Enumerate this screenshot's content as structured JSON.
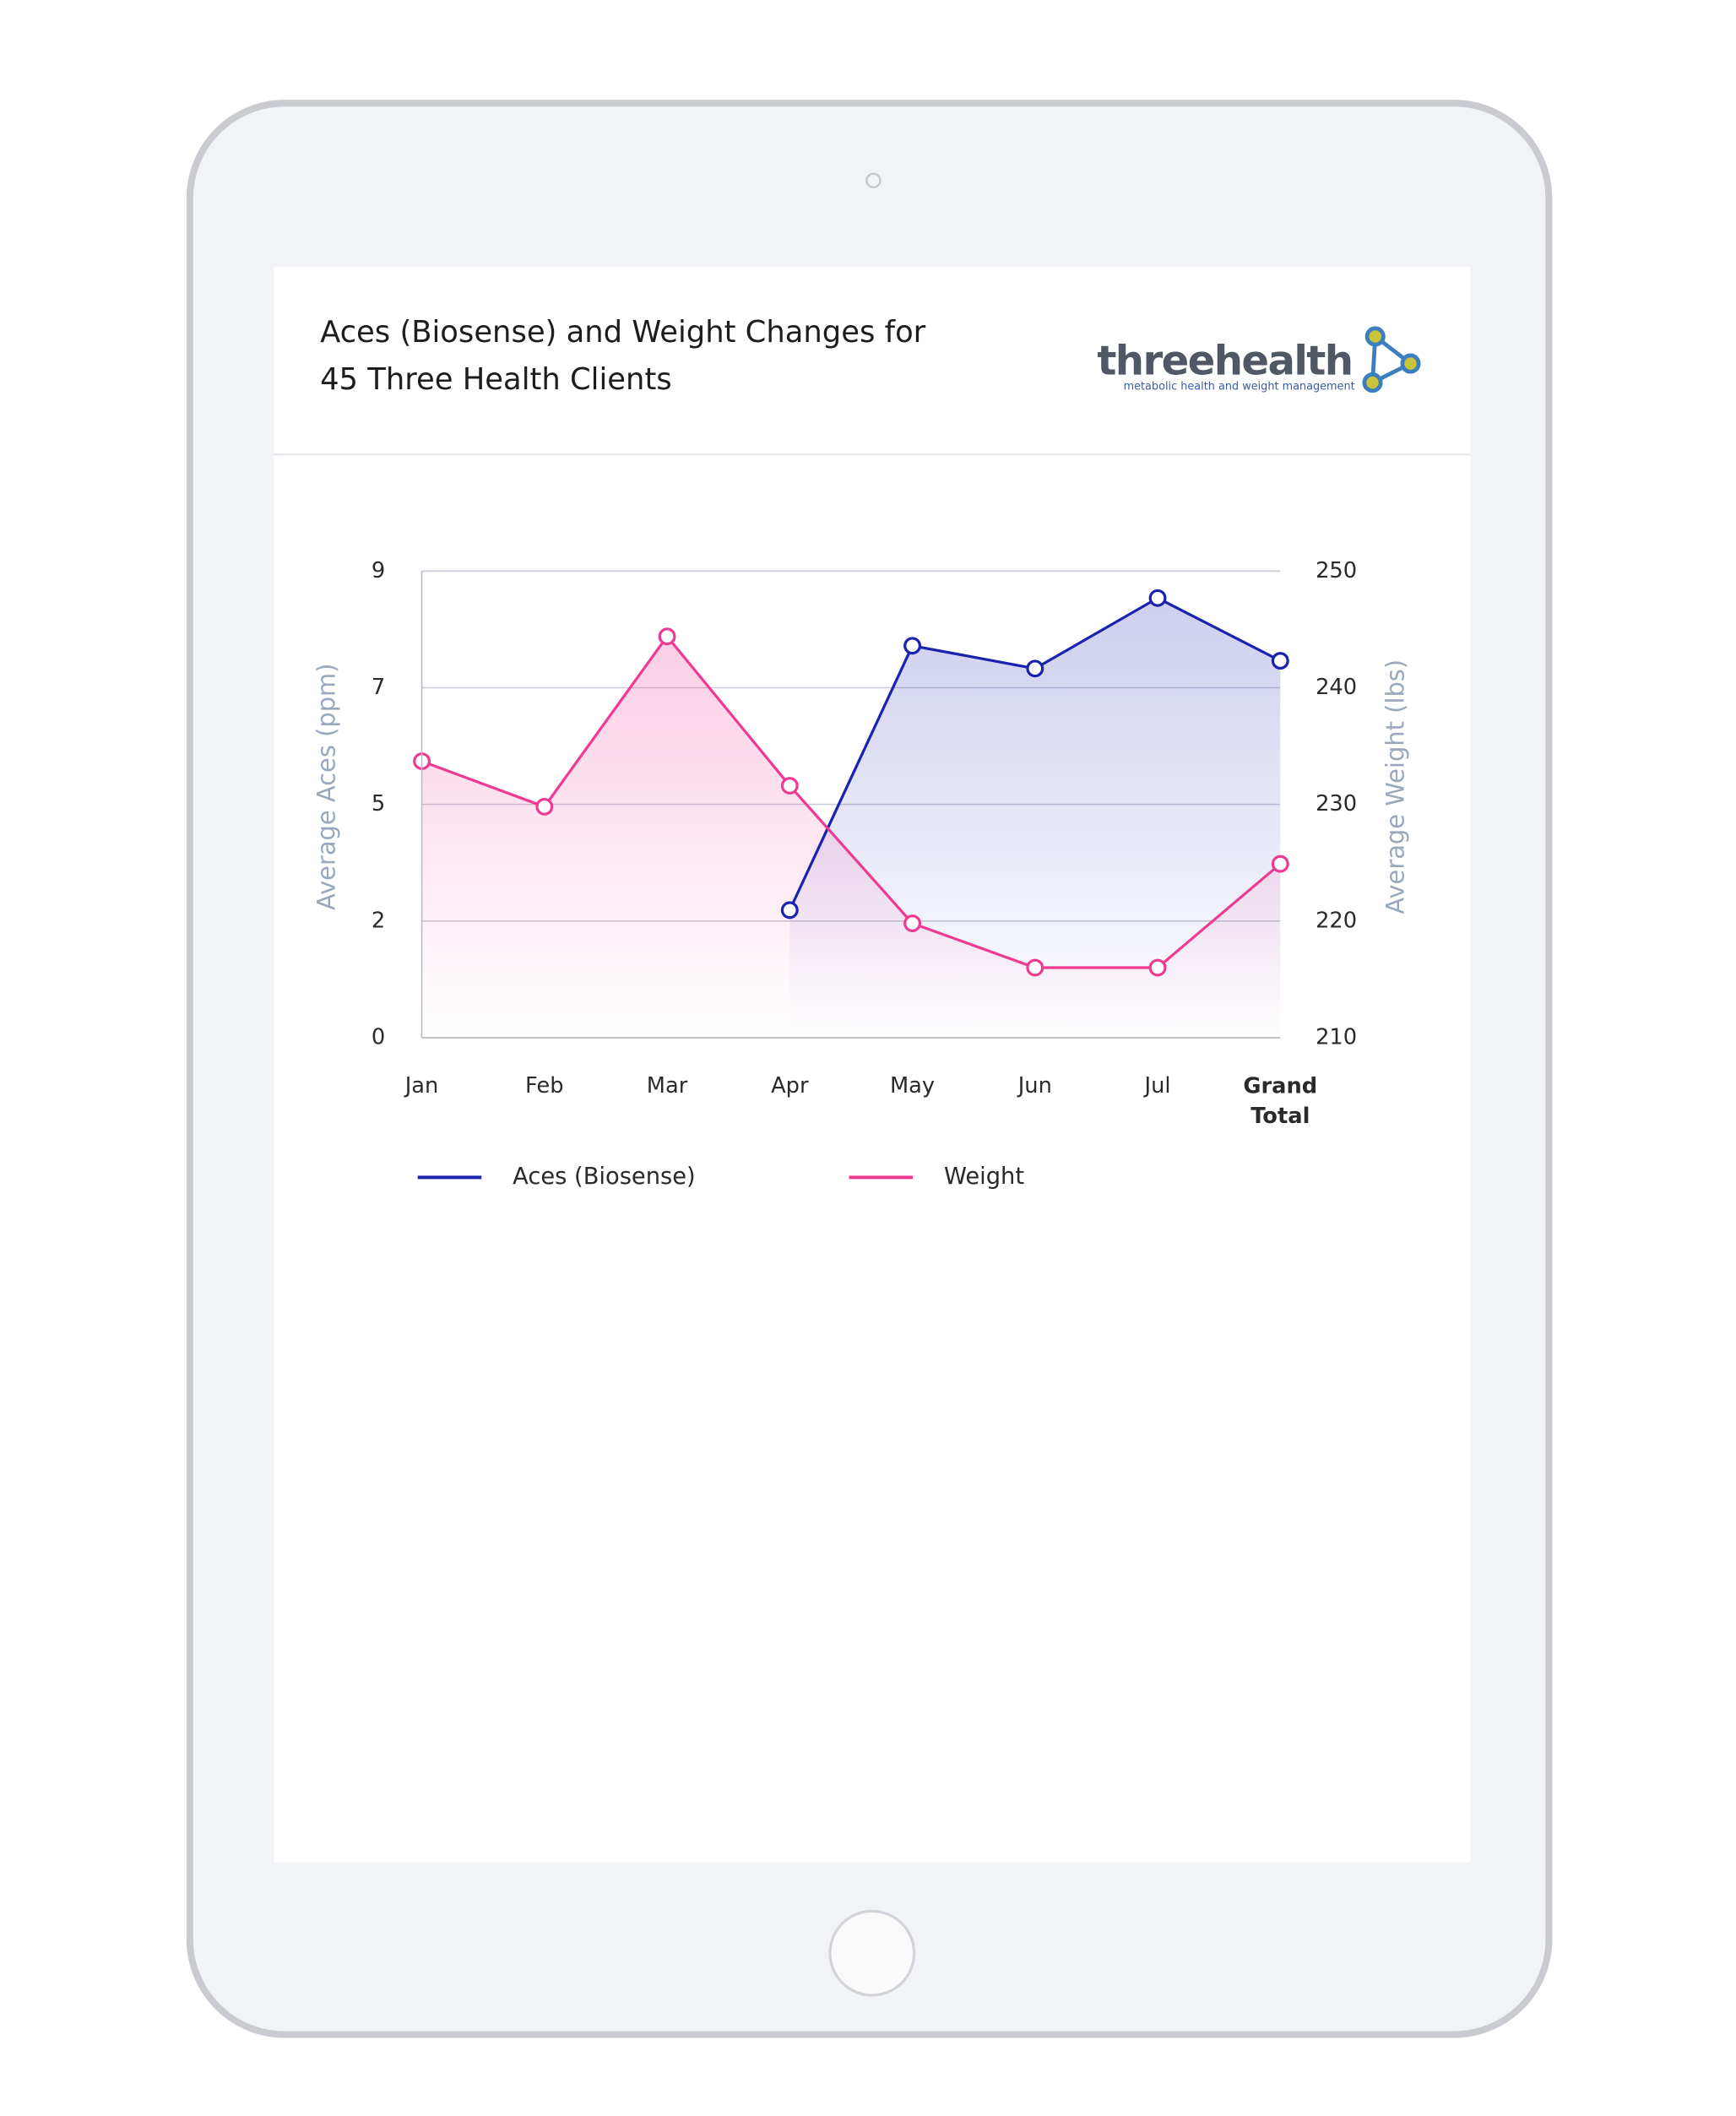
{
  "chart_data": {
    "type": "line",
    "title": "Aces (Biosense) and Weight Changes for 45 Three Health Clients",
    "categories": [
      "Jan",
      "Feb",
      "Mar",
      "Apr",
      "May",
      "Jun",
      "Jul",
      "Grand Total"
    ],
    "series": [
      {
        "name": "Aces (Biosense)",
        "color": "#1a23b0",
        "values": [
          null,
          null,
          null,
          2.46,
          7.56,
          7.12,
          8.48,
          7.27
        ]
      },
      {
        "name": "Weight",
        "color": "#ee3a93",
        "axis": "y2",
        "values": [
          233.7,
          229.8,
          244.4,
          231.6,
          219.8,
          216.0,
          216.0,
          224.9
        ]
      }
    ],
    "ylabel": "Average Aces (ppm)",
    "y2label": "Average Weight (lbs)",
    "ylim": [
      0,
      9
    ],
    "yticks": [
      0,
      {
        "value": 2.25,
        "label": "2"
      },
      {
        "value": 4.5,
        "label": "5"
      },
      {
        "value": 6.75,
        "label": "7"
      },
      9
    ],
    "y2lim": [
      210,
      250
    ],
    "y2ticks": [
      210,
      220,
      230,
      240,
      250
    ],
    "grid": true
  },
  "logo": {
    "name": "threehealth",
    "tagline": "metabolic health and weight management"
  }
}
